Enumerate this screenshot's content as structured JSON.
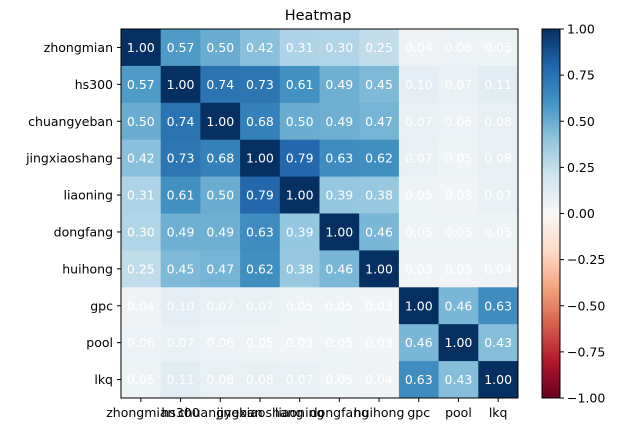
{
  "chart_data": {
    "type": "heatmap",
    "title": "Heatmap",
    "xlabel": "",
    "ylabel": "",
    "labels": [
      "zhongmian",
      "hs300",
      "chuangyeban",
      "jingxiaoshang",
      "liaoning",
      "dongfang",
      "huihong",
      "gpc",
      "pool",
      "lkq"
    ],
    "values": [
      [
        1.0,
        0.57,
        0.5,
        0.42,
        0.31,
        0.3,
        0.25,
        0.04,
        0.06,
        0.05
      ],
      [
        0.57,
        1.0,
        0.74,
        0.73,
        0.61,
        0.49,
        0.45,
        0.1,
        0.07,
        0.11
      ],
      [
        0.5,
        0.74,
        1.0,
        0.68,
        0.5,
        0.49,
        0.47,
        0.07,
        0.06,
        0.08
      ],
      [
        0.42,
        0.73,
        0.68,
        1.0,
        0.79,
        0.63,
        0.62,
        0.07,
        0.05,
        0.08
      ],
      [
        0.31,
        0.61,
        0.5,
        0.79,
        1.0,
        0.39,
        0.38,
        0.05,
        0.03,
        0.07
      ],
      [
        0.3,
        0.49,
        0.49,
        0.63,
        0.39,
        1.0,
        0.46,
        0.05,
        0.05,
        0.05
      ],
      [
        0.25,
        0.45,
        0.47,
        0.62,
        0.38,
        0.46,
        1.0,
        0.03,
        0.03,
        0.04
      ],
      [
        0.04,
        0.1,
        0.07,
        0.07,
        0.05,
        0.05,
        0.03,
        1.0,
        0.46,
        0.63
      ],
      [
        0.06,
        0.07,
        0.06,
        0.05,
        0.03,
        0.05,
        0.03,
        0.46,
        1.0,
        0.43
      ],
      [
        0.05,
        0.11,
        0.08,
        0.08,
        0.07,
        0.05,
        0.04,
        0.63,
        0.43,
        1.0
      ]
    ],
    "colormap": "RdBu",
    "vmin": -1.0,
    "vmax": 1.0,
    "colorbar_ticks": [
      "1.00",
      "0.75",
      "0.50",
      "0.25",
      "0.00",
      "−0.25",
      "−0.50",
      "−0.75",
      "−1.00"
    ],
    "colorbar_values": [
      1.0,
      0.75,
      0.5,
      0.25,
      0.0,
      -0.25,
      -0.5,
      -0.75,
      -1.0
    ],
    "grid": false,
    "legend": "colorbar-right"
  }
}
